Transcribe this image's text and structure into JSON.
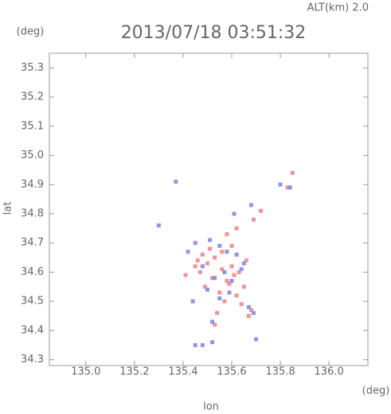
{
  "chart_data": {
    "type": "scatter",
    "title": "2013/07/18 03:51:32",
    "subtitle": "ALT(km) 2.0",
    "y_unit": "(deg)",
    "x_unit": "(deg)",
    "x_label": "lon",
    "y_label": "lat",
    "xlim": [
      134.85,
      136.16
    ],
    "ylim": [
      34.28,
      35.35
    ],
    "xticks": [
      {
        "value": 135.0,
        "label": "135.0"
      },
      135.2,
      135.4,
      135.6,
      135.8,
      {
        "value": 136.0,
        "label": "136.0"
      }
    ],
    "yticks": [
      34.3,
      34.4,
      34.5,
      34.6,
      34.7,
      34.8,
      34.9,
      {
        "value": 35.0,
        "label": "35.0"
      },
      35.1,
      35.2,
      35.3
    ],
    "series": [
      {
        "color": "#f07878",
        "x": [
          135.85,
          135.83,
          135.72,
          135.69,
          135.62,
          135.58,
          135.48,
          135.46,
          135.5,
          135.53,
          135.56,
          135.6,
          135.63,
          135.66,
          135.47,
          135.52,
          135.58,
          135.61,
          135.65,
          135.55,
          135.49,
          135.57,
          135.62,
          135.68,
          135.54,
          135.59,
          135.64,
          135.51,
          135.56,
          135.6,
          135.45,
          135.67,
          135.53,
          135.41
        ],
        "values": [
          34.94,
          34.89,
          34.81,
          34.78,
          34.75,
          34.73,
          34.66,
          34.64,
          34.63,
          34.65,
          34.61,
          34.62,
          34.6,
          34.64,
          34.6,
          34.58,
          34.57,
          34.59,
          34.55,
          34.53,
          34.55,
          34.5,
          34.52,
          34.47,
          34.46,
          34.56,
          34.49,
          34.68,
          34.67,
          34.69,
          34.62,
          34.45,
          34.42,
          34.59
        ]
      },
      {
        "color": "#7878e8",
        "x": [
          135.84,
          135.8,
          135.68,
          135.61,
          135.45,
          135.42,
          135.51,
          135.55,
          135.58,
          135.62,
          135.65,
          135.48,
          135.53,
          135.57,
          135.6,
          135.64,
          135.5,
          135.55,
          135.59,
          135.67,
          135.69,
          135.52,
          135.44,
          135.45,
          135.48,
          135.52,
          135.7,
          135.37,
          135.3
        ],
        "values": [
          34.89,
          34.9,
          34.83,
          34.8,
          34.7,
          34.67,
          34.71,
          34.69,
          34.67,
          34.66,
          34.63,
          34.62,
          34.58,
          34.6,
          34.57,
          34.61,
          34.54,
          34.51,
          34.53,
          34.48,
          34.46,
          34.43,
          34.5,
          34.35,
          34.35,
          34.36,
          34.37,
          34.91,
          34.76
        ]
      }
    ]
  }
}
